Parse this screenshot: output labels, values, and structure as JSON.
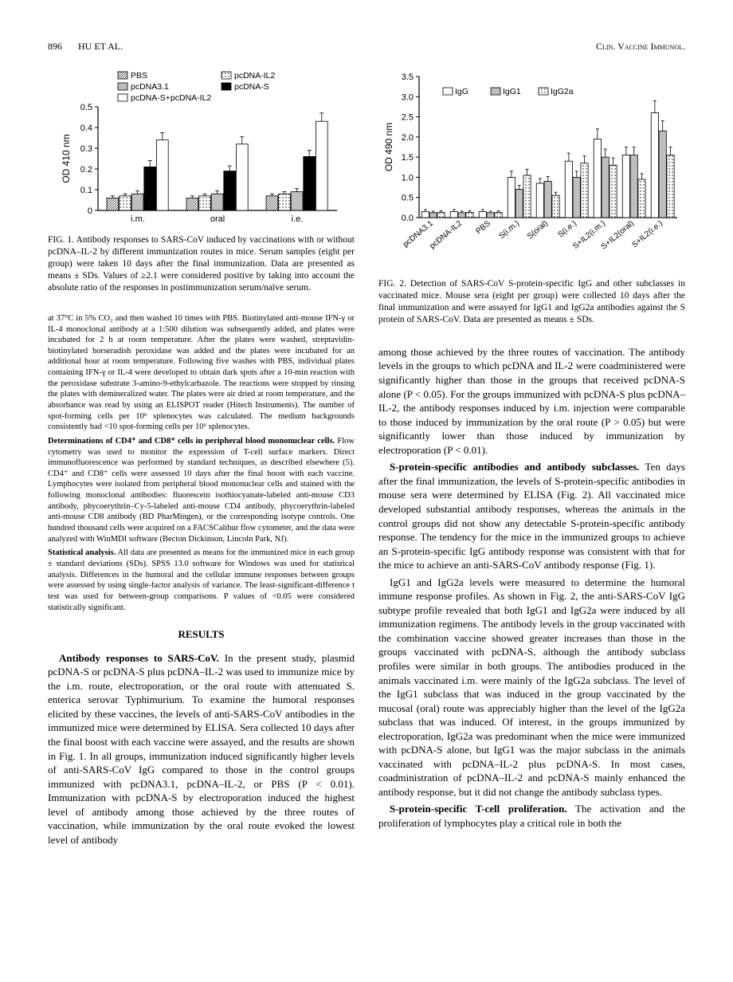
{
  "header": {
    "page": "896",
    "authors": "HU ET AL.",
    "journal": "Clin. Vaccine Immunol."
  },
  "fig1": {
    "type": "bar",
    "ylabel": "OD 410 nm",
    "ylim": [
      0,
      0.5
    ],
    "yticks": [
      0,
      0.1,
      0.2,
      0.3,
      0.4,
      0.5
    ],
    "categories": [
      "i.m.",
      "oral",
      "i.e."
    ],
    "series": [
      {
        "label": "PBS",
        "pattern": "hatch-dense",
        "values": [
          0.06,
          0.06,
          0.07
        ],
        "err": [
          0.01,
          0.01,
          0.01
        ]
      },
      {
        "label": "pcDNA-IL2",
        "pattern": "dots",
        "values": [
          0.07,
          0.07,
          0.08
        ],
        "err": [
          0.01,
          0.01,
          0.01
        ]
      },
      {
        "label": "pcDNA3.1",
        "pattern": "gray",
        "values": [
          0.08,
          0.08,
          0.09
        ],
        "err": [
          0.015,
          0.015,
          0.015
        ]
      },
      {
        "label": "pcDNA-S",
        "pattern": "black",
        "values": [
          0.21,
          0.19,
          0.26
        ],
        "err": [
          0.03,
          0.025,
          0.03
        ]
      },
      {
        "label": "pcDNA-S+pcDNA-IL2",
        "pattern": "white",
        "values": [
          0.34,
          0.32,
          0.43
        ],
        "err": [
          0.035,
          0.035,
          0.04
        ]
      }
    ],
    "legend_items": [
      {
        "label": "PBS",
        "pattern": "hatch-dense"
      },
      {
        "label": "pcDNA-IL2",
        "pattern": "dots"
      },
      {
        "label": "pcDNA3.1",
        "pattern": "gray"
      },
      {
        "label": "pcDNA-S",
        "pattern": "black"
      },
      {
        "label": "pcDNA-S+pcDNA-IL2",
        "pattern": "white"
      }
    ],
    "bar_width": 0.16,
    "axis_color": "#000000",
    "text_color": "#000000",
    "caption": "FIG. 1.  Antibody responses to SARS-CoV induced by vaccinations with or without pcDNA–IL-2 by different immunization routes in mice. Serum samples (eight per group) were taken 10 days after the final immunization. Data are presented as means ± SDs. Values of ≥2.1 were considered positive by taking into account the absolute ratio of the responses in postimmunization serum/naïve serum."
  },
  "fig2": {
    "type": "bar",
    "ylabel": "OD 490 nm",
    "ylim": [
      0,
      3.5
    ],
    "yticks": [
      0,
      0.5,
      1.0,
      1.5,
      2.0,
      2.5,
      3.0,
      3.5
    ],
    "categories": [
      "pcDNA3.1",
      "pcDNA-IL2",
      "PBS",
      "S(i.m.)",
      "S(oral)",
      "S(i.e.)",
      "S+IL2(i.m.)",
      "S+IL2(oral)",
      "S+IL2(i.e.)"
    ],
    "series": [
      {
        "label": "IgG",
        "pattern": "white",
        "values": [
          0.15,
          0.15,
          0.15,
          1.0,
          0.85,
          1.4,
          1.95,
          1.55,
          2.6
        ],
        "err": [
          0.05,
          0.05,
          0.05,
          0.15,
          0.12,
          0.2,
          0.25,
          0.2,
          0.3
        ]
      },
      {
        "label": "IgG1",
        "pattern": "gray",
        "values": [
          0.12,
          0.12,
          0.12,
          0.7,
          0.9,
          1.0,
          1.5,
          1.55,
          2.15
        ],
        "err": [
          0.04,
          0.04,
          0.04,
          0.1,
          0.12,
          0.15,
          0.2,
          0.2,
          0.25
        ]
      },
      {
        "label": "IgG2a",
        "pattern": "dots",
        "values": [
          0.13,
          0.13,
          0.13,
          1.05,
          0.55,
          1.35,
          1.3,
          0.95,
          1.55
        ],
        "err": [
          0.04,
          0.04,
          0.04,
          0.15,
          0.08,
          0.18,
          0.18,
          0.14,
          0.2
        ]
      }
    ],
    "legend_items": [
      {
        "label": "IgG",
        "pattern": "white"
      },
      {
        "label": "IgG1",
        "pattern": "gray"
      },
      {
        "label": "IgG2a",
        "pattern": "dots"
      }
    ],
    "bar_width": 0.26,
    "axis_color": "#000000",
    "text_color": "#000000",
    "caption": "FIG. 2.  Detection of SARS-CoV S-protein-specific IgG and other subclasses in vaccinated mice. Mouse sera (eight per group) were collected 10 days after the final immunization and were assayed for IgG1 and IgG2a antibodies against the S protein of SARS-CoV. Data are presented as means ± SDs."
  },
  "methods": {
    "para1": "at 37°C in 5% CO₂ and then washed 10 times with PBS. Biotinylated anti-mouse IFN-γ or IL-4 monoclonal antibody at a 1:500 dilution was subsequently added, and plates were incubated for 2 h at room temperature. After the plates were washed, streptavidin-biotinylated horseradish peroxidase was added and the plates were incubated for an additional hour at room temperature. Following five washes with PBS, individual plates containing IFN-γ or IL-4 were developed to obtain dark spots after a 10-min reaction with the peroxidase substrate 3-amino-9-ethylcarbazole. The reactions were stopped by rinsing the plates with demineralized water. The plates were air dried at room temperature, and the absorbance was read by using an ELISPOT reader (Hitech Instruments). The number of spot-forming cells per 10⁶ splenocytes was calculated. The medium backgrounds consistently had <10 spot-forming cells per 10⁶ splenocytes.",
    "head2": "Determinations of CD4⁺ and CD8⁺ cells in peripheral blood mononuclear cells.",
    "para2": " Flow cytometry was used to monitor the expression of T-cell surface markers. Direct immunofluorescence was performed by standard techniques, as described elsewhere (5). CD4⁺ and CD8⁺ cells were assessed 10 days after the final boost with each vaccine. Lymphocytes were isolated from peripheral blood mononuclear cells and stained with the following monoclonal antibodies: fluorescein isothiocyanate-labeled anti-mouse CD3 antibody, phycoerythrin–Cy-5-labeled anti-mouse CD4 antibody, phycoerythrin-labeled anti-mouse CD8 antibody (BD PharMingen), or the corresponding isotype controls. One hundred thousand cells were acquired on a FACSCalibur flow cytometer, and the data were analyzed with WinMDI software (Becton Dickinson, Lincoln Park, NJ).",
    "head3": "Statistical analysis.",
    "para3": " All data are presented as means for the immunized mice in each group ± standard deviations (SDs). SPSS 13.0 software for Windows was used for statistical analysis. Differences in the humoral and the cellular immune responses between groups were assessed by using single-factor analysis of variance. The least-significant-difference t test was used for between-group comparisons. P values of <0.05 were considered statistically significant."
  },
  "results_head": "RESULTS",
  "results": {
    "head1": "Antibody responses to SARS-CoV.",
    "para1": " In the present study, plasmid pcDNA-S or pcDNA-S plus pcDNA–IL-2 was used to immunize mice by the i.m. route, electroporation, or the oral route with attenuated S. enterica serovar Typhimurium. To examine the humoral responses elicited by these vaccines, the levels of anti-SARS-CoV antibodies in the immunized mice were determined by ELISA. Sera collected 10 days after the final boost with each vaccine were assayed, and the results are shown in Fig. 1. In all groups, immunization induced significantly higher levels of anti-SARS-CoV IgG compared to those in the control groups immunized with pcDNA3.1, pcDNA–IL-2, or PBS (P < 0.01). Immunization with pcDNA-S by electroporation induced the highest level of antibody among those achieved by the three routes of vaccination, while immunization by the oral route evoked the lowest level of antibody",
    "para2_right": "among those achieved by the three routes of vaccination. The antibody levels in the groups to which pcDNA and IL-2 were coadministered were significantly higher than those in the groups that received pcDNA-S alone (P < 0.05). For the groups immunized with pcDNA-S plus pcDNA–IL-2, the antibody responses induced by i.m. injection were comparable to those induced by immunization by the oral route (P > 0.05) but were significantly lower than those induced by immunization by electroporation (P < 0.01).",
    "head2": "S-protein-specific antibodies and antibody subclasses.",
    "para3": " Ten days after the final immunization, the levels of S-protein-specific antibodies in mouse sera were determined by ELISA (Fig. 2). All vaccinated mice developed substantial antibody responses, whereas the animals in the control groups did not show any detectable S-protein-specific antibody response. The tendency for the mice in the immunized groups to achieve an S-protein-specific IgG antibody response was consistent with that for the mice to achieve an anti-SARS-CoV antibody response (Fig. 1).",
    "para4": "IgG1 and IgG2a levels were measured to determine the humoral immune response profiles. As shown in Fig. 2, the anti-SARS-CoV IgG subtype profile revealed that both IgG1 and IgG2a were induced by all immunization regimens. The antibody levels in the group vaccinated with the combination vaccine showed greater increases than those in the groups vaccinated with pcDNA-S, although the antibody subclass profiles were similar in both groups. The antibodies produced in the animals vaccinated i.m. were mainly of the IgG2a subclass. The level of the IgG1 subclass that was induced in the group vaccinated by the mucosal (oral) route was appreciably higher than the level of the IgG2a subclass that was induced. Of interest, in the groups immunized by electroporation, IgG2a was predominant when the mice were immunized with pcDNA-S alone, but IgG1 was the major subclass in the animals vaccinated with pcDNA–IL-2 plus pcDNA-S. In most cases, coadministration of pcDNA–IL-2 and pcDNA-S mainly enhanced the antibody response, but it did not change the antibody subclass types.",
    "head3": "S-protein-specific T-cell proliferation.",
    "para5": " The activation and the proliferation of lymphocytes play a critical role in both the"
  }
}
